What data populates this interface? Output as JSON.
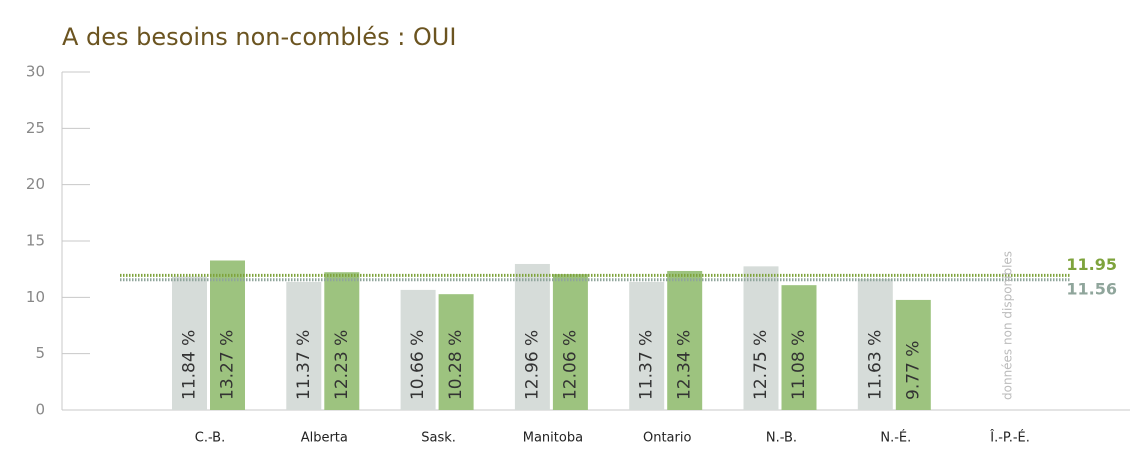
{
  "chart_data": {
    "type": "bar",
    "title": "A des besoins non-comblés : OUI",
    "categories": [
      "C.-B.",
      "Alberta",
      "Sask.",
      "Manitoba",
      "Ontario",
      "N.-B.",
      "N.-É.",
      "Î.-P.-É."
    ],
    "series": [
      {
        "color": "#d6dcd9",
        "values": [
          11.84,
          11.37,
          10.66,
          12.96,
          11.37,
          12.75,
          11.63,
          null
        ],
        "value_labels": [
          "11.84 %",
          "11.37 %",
          "10.66 %",
          "12.96 %",
          "11.37 %",
          "12.75 %",
          "11.63 %",
          null
        ]
      },
      {
        "color": "#9dc37f",
        "values": [
          13.27,
          12.23,
          10.28,
          12.06,
          12.34,
          11.08,
          9.77,
          null
        ],
        "value_labels": [
          "13.27 %",
          "12.23 %",
          "10.28 %",
          "12.06 %",
          "12.34 %",
          "11.08 %",
          "9.77 %",
          null
        ]
      }
    ],
    "annotation": "données non disponibles",
    "reference_lines": [
      {
        "value": 11.95,
        "color": "#7ea33c"
      },
      {
        "value": 11.56,
        "color": "#8fa59b"
      }
    ],
    "ylim": [
      0,
      30
    ],
    "yticks": [
      0,
      5,
      10,
      15,
      20,
      25,
      30
    ],
    "grid": false
  }
}
